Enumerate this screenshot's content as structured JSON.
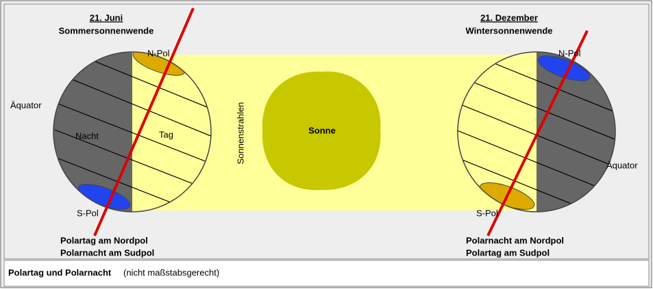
{
  "left": {
    "date": "21. Juni",
    "event": "Sommersonnenwende",
    "north_pole": "N-Pol",
    "equator": "Äquator",
    "night": "Nacht",
    "day": "Tag",
    "south_pole": "S-Pol",
    "caption": [
      "Polartag am Nordpol",
      "Polarnacht am Sudpol"
    ]
  },
  "center": {
    "rays": "Sonnenstrahlen",
    "sun": "Sonne"
  },
  "right": {
    "date": "21. Dezember",
    "event": "Wintersonnenwende",
    "north_pole": "N-Pol",
    "equator": "Äquator",
    "south_pole": "S-Pol",
    "caption": [
      "Polarnacht am Nordpol",
      "Polartag am Sudpol"
    ]
  },
  "footer": {
    "title": "Polartag und Polarnacht",
    "note": "(nicht maßstabsgerecht)"
  }
}
